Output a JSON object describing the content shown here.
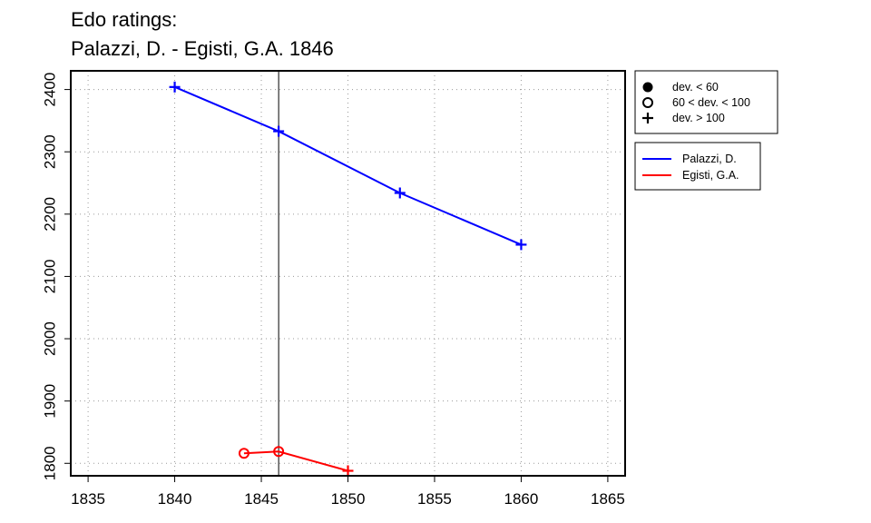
{
  "chart_data": {
    "type": "line",
    "title": "Edo ratings:",
    "subtitle": "Palazzi, D. - Egisti, G.A. 1846",
    "xlim": [
      1834,
      1866
    ],
    "ylim": [
      1780,
      2430
    ],
    "x_ticks": [
      1835,
      1840,
      1845,
      1850,
      1855,
      1860,
      1865
    ],
    "y_ticks": [
      1800,
      1900,
      2000,
      2100,
      2200,
      2300,
      2400
    ],
    "grid": true,
    "vertical_marker_x": 1846,
    "series": [
      {
        "name": "Palazzi, D.",
        "color": "#0000ff",
        "points": [
          {
            "x": 1840,
            "y": 2404,
            "marker": "plus"
          },
          {
            "x": 1846,
            "y": 2333,
            "marker": "plus"
          },
          {
            "x": 1853,
            "y": 2234,
            "marker": "plus"
          },
          {
            "x": 1860,
            "y": 2151,
            "marker": "plus"
          }
        ]
      },
      {
        "name": "Egisti, G.A.",
        "color": "#ff0000",
        "points": [
          {
            "x": 1844,
            "y": 1816,
            "marker": "open-circle"
          },
          {
            "x": 1846,
            "y": 1819,
            "marker": "open-circle"
          },
          {
            "x": 1850,
            "y": 1788,
            "marker": "plus"
          }
        ]
      }
    ],
    "marker_legend": {
      "placement": "top-right",
      "entries": [
        {
          "marker": "filled-circle",
          "label": "dev. < 60"
        },
        {
          "marker": "open-circle",
          "label": "60 < dev. < 100"
        },
        {
          "marker": "plus",
          "label": "dev. > 100"
        }
      ]
    },
    "series_legend": {
      "placement": "right",
      "entries": [
        {
          "label": "Palazzi, D.",
          "color": "#0000ff"
        },
        {
          "label": "Egisti, G.A.",
          "color": "#ff0000"
        }
      ]
    }
  }
}
